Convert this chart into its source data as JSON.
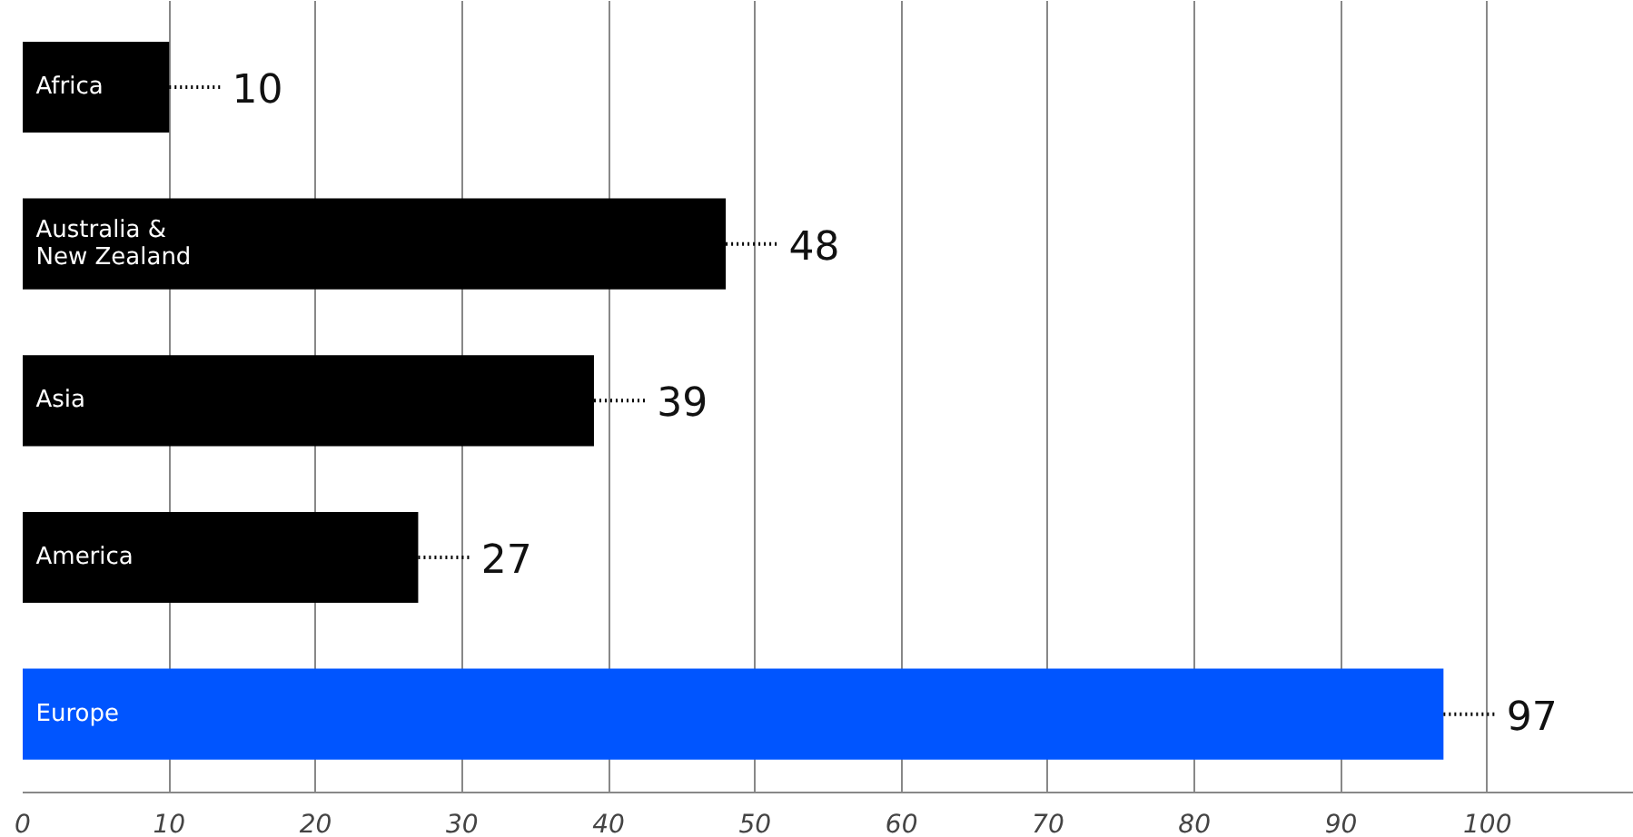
{
  "chart_data": {
    "type": "bar",
    "orientation": "horizontal",
    "categories": [
      "Africa",
      "Australia &\nNew Zealand",
      "Asia",
      "America",
      "Europe"
    ],
    "values": [
      10,
      48,
      39,
      27,
      97
    ],
    "colors": [
      "#000000",
      "#000000",
      "#000000",
      "#000000",
      "#0055ff"
    ],
    "xlim": [
      0,
      110
    ],
    "xticks": [
      0,
      10,
      20,
      30,
      40,
      50,
      60,
      70,
      80,
      90,
      100
    ],
    "grid": "x",
    "data_labels": true
  }
}
